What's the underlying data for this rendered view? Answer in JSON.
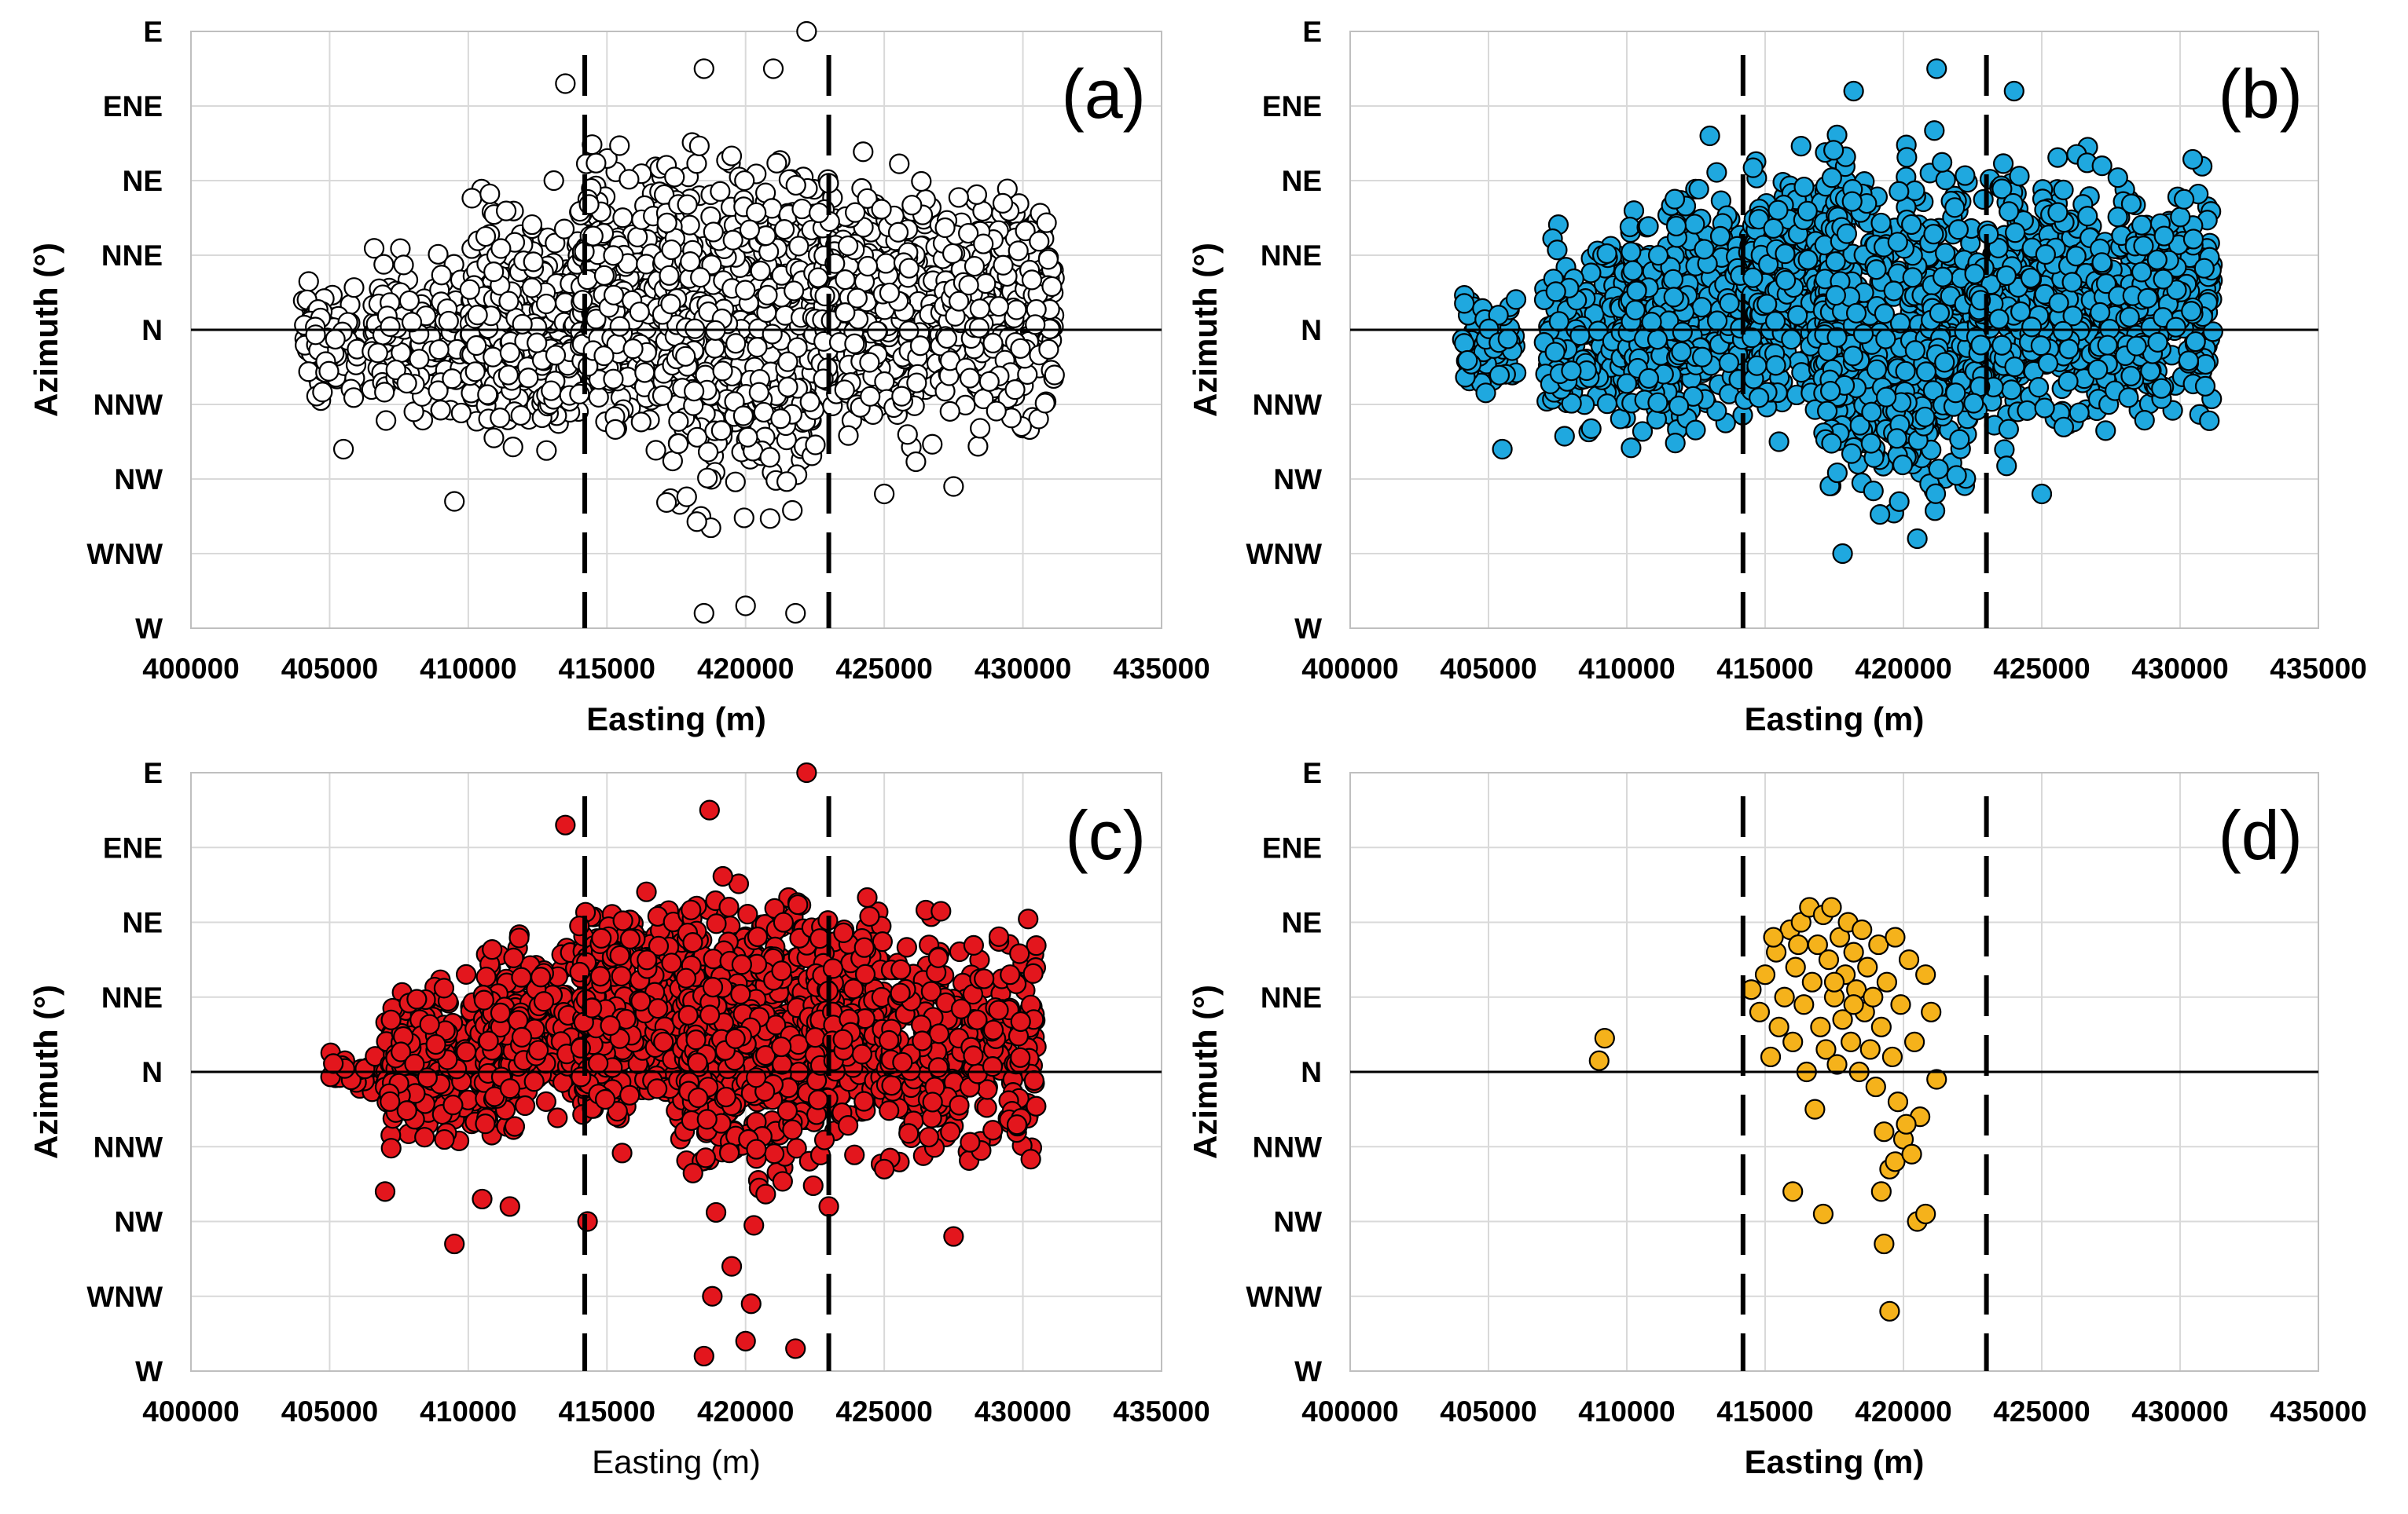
{
  "chart_data": [
    {
      "type": "scatter",
      "panel_label": "(a)",
      "xlabel": "Easting (m)",
      "ylabel": "Azimuth (°)",
      "xlim": [
        400000,
        435000
      ],
      "x_ticks": [
        "400000",
        "405000",
        "410000",
        "415000",
        "420000",
        "425000",
        "430000",
        "435000"
      ],
      "y_categories": [
        "W",
        "WNW",
        "NW",
        "NNW",
        "N",
        "NNE",
        "NE",
        "ENE",
        "E"
      ],
      "reference_lines_x": [
        414200,
        423000
      ],
      "marker_fill": "#ffffff",
      "marker_edge": "#000000",
      "clusters": [
        {
          "x": [
            404000,
            406000
          ],
          "y": [
            -1.2,
            0.8
          ],
          "n": 90
        },
        {
          "x": [
            406500,
            412000
          ],
          "y": [
            -1.6,
            1.4
          ],
          "n": 260
        },
        {
          "x": [
            410000,
            414000
          ],
          "y": [
            -2.0,
            2.2
          ],
          "n": 330
        },
        {
          "x": [
            414000,
            417500
          ],
          "y": [
            -1.8,
            2.8
          ],
          "n": 380
        },
        {
          "x": [
            417000,
            422500
          ],
          "y": [
            -3.2,
            3.2
          ],
          "n": 520
        },
        {
          "x": [
            422500,
            427000
          ],
          "y": [
            -2.0,
            2.6
          ],
          "n": 380
        },
        {
          "x": [
            427000,
            431200
          ],
          "y": [
            -1.8,
            2.4
          ],
          "n": 300
        }
      ],
      "extra_points": [
        {
          "x": 422200,
          "y": 4.0
        },
        {
          "x": 418500,
          "y": -3.8
        },
        {
          "x": 420000,
          "y": -3.7
        },
        {
          "x": 421800,
          "y": -3.8
        },
        {
          "x": 409500,
          "y": -2.3
        },
        {
          "x": 405500,
          "y": -1.6
        },
        {
          "x": 421000,
          "y": 3.5
        },
        {
          "x": 413500,
          "y": 3.3
        },
        {
          "x": 418500,
          "y": 3.5
        },
        {
          "x": 425000,
          "y": -2.2
        },
        {
          "x": 427500,
          "y": -2.1
        }
      ]
    },
    {
      "type": "scatter",
      "panel_label": "(b)",
      "xlabel": "Easting (m)",
      "ylabel": "Azimuth (°)",
      "xlim": [
        400000,
        435000
      ],
      "x_ticks": [
        "400000",
        "405000",
        "410000",
        "415000",
        "420000",
        "425000",
        "430000",
        "435000"
      ],
      "y_categories": [
        "W",
        "WNW",
        "NW",
        "NNW",
        "N",
        "NNE",
        "NE",
        "ENE",
        "E"
      ],
      "reference_lines_x": [
        414200,
        423000
      ],
      "marker_fill": "#1fa8df",
      "marker_edge": "#000000",
      "clusters": [
        {
          "x": [
            404000,
            406000
          ],
          "y": [
            -1.2,
            0.8
          ],
          "n": 80
        },
        {
          "x": [
            407000,
            412000
          ],
          "y": [
            -1.8,
            1.6
          ],
          "n": 260
        },
        {
          "x": [
            410000,
            414500
          ],
          "y": [
            -2.0,
            2.4
          ],
          "n": 340
        },
        {
          "x": [
            414500,
            418000
          ],
          "y": [
            -1.6,
            2.8
          ],
          "n": 380
        },
        {
          "x": [
            417000,
            422500
          ],
          "y": [
            -3.0,
            3.2
          ],
          "n": 560
        },
        {
          "x": [
            422500,
            427000
          ],
          "y": [
            -2.0,
            2.8
          ],
          "n": 420
        },
        {
          "x": [
            427000,
            431200
          ],
          "y": [
            -1.8,
            2.6
          ],
          "n": 330
        }
      ],
      "extra_points": [
        {
          "x": 421200,
          "y": 3.5
        },
        {
          "x": 418200,
          "y": 3.2
        },
        {
          "x": 417800,
          "y": -3.0
        },
        {
          "x": 420500,
          "y": -2.8
        },
        {
          "x": 405500,
          "y": -1.6
        },
        {
          "x": 415500,
          "y": -1.5
        },
        {
          "x": 425000,
          "y": -2.2
        },
        {
          "x": 424000,
          "y": 3.2
        },
        {
          "x": 413000,
          "y": 2.6
        }
      ]
    },
    {
      "type": "scatter",
      "panel_label": "(c)",
      "xlabel": "Easting (m)",
      "ylabel": "Azimuth (°)",
      "xlim": [
        400000,
        435000
      ],
      "x_ticks": [
        "400000",
        "405000",
        "410000",
        "415000",
        "420000",
        "425000",
        "430000",
        "435000"
      ],
      "y_categories": [
        "W",
        "WNW",
        "NW",
        "NNW",
        "N",
        "NNE",
        "NE",
        "ENE",
        "E"
      ],
      "reference_lines_x": [
        414200,
        423000
      ],
      "marker_fill": "#e3161d",
      "marker_edge": "#000000",
      "clusters": [
        {
          "x": [
            405000,
            407500
          ],
          "y": [
            -0.4,
            0.4
          ],
          "n": 40
        },
        {
          "x": [
            407000,
            411000
          ],
          "y": [
            -1.4,
            1.6
          ],
          "n": 260
        },
        {
          "x": [
            410500,
            414000
          ],
          "y": [
            -1.0,
            2.0
          ],
          "n": 320
        },
        {
          "x": [
            414000,
            417800
          ],
          "y": [
            -1.2,
            2.8
          ],
          "n": 380
        },
        {
          "x": [
            417800,
            422500
          ],
          "y": [
            -2.2,
            3.2
          ],
          "n": 520
        },
        {
          "x": [
            422500,
            425000
          ],
          "y": [
            -1.4,
            2.6
          ],
          "n": 240
        },
        {
          "x": [
            425000,
            430500
          ],
          "y": [
            -1.6,
            2.4
          ],
          "n": 330
        }
      ],
      "extra_points": [
        {
          "x": 422200,
          "y": 4.0
        },
        {
          "x": 418500,
          "y": -3.8
        },
        {
          "x": 420000,
          "y": -3.6
        },
        {
          "x": 421800,
          "y": -3.7
        },
        {
          "x": 409500,
          "y": -2.3
        },
        {
          "x": 410500,
          "y": -1.7
        },
        {
          "x": 411500,
          "y": -1.8
        },
        {
          "x": 418700,
          "y": 3.5
        },
        {
          "x": 413500,
          "y": 3.3
        },
        {
          "x": 419500,
          "y": -2.6
        },
        {
          "x": 420200,
          "y": -3.1
        },
        {
          "x": 418800,
          "y": -3.0
        },
        {
          "x": 407000,
          "y": -1.6
        },
        {
          "x": 423000,
          "y": -1.8
        },
        {
          "x": 425000,
          "y": -1.3
        },
        {
          "x": 427500,
          "y": -2.2
        },
        {
          "x": 414300,
          "y": -2.0
        }
      ]
    },
    {
      "type": "scatter",
      "panel_label": "(d)",
      "xlabel": "Easting (m)",
      "ylabel": "Azimuth (°)",
      "xlim": [
        400000,
        435000
      ],
      "x_ticks": [
        "400000",
        "405000",
        "410000",
        "415000",
        "420000",
        "425000",
        "430000",
        "435000"
      ],
      "y_categories": [
        "W",
        "WNW",
        "NW",
        "NNW",
        "N",
        "NNE",
        "NE",
        "ENE",
        "E"
      ],
      "reference_lines_x": [
        414200,
        423000
      ],
      "marker_fill": "#f5b21b",
      "marker_edge": "#000000",
      "points": [
        {
          "x": 409000,
          "y": 0.15
        },
        {
          "x": 409200,
          "y": 0.45
        },
        {
          "x": 414500,
          "y": 1.1
        },
        {
          "x": 414800,
          "y": 0.8
        },
        {
          "x": 415000,
          "y": 1.3
        },
        {
          "x": 415200,
          "y": 0.2
        },
        {
          "x": 415400,
          "y": 1.6
        },
        {
          "x": 415500,
          "y": 0.6
        },
        {
          "x": 415700,
          "y": 1.0
        },
        {
          "x": 415900,
          "y": 1.9
        },
        {
          "x": 416000,
          "y": 0.4
        },
        {
          "x": 416100,
          "y": 1.4
        },
        {
          "x": 416300,
          "y": 2.0
        },
        {
          "x": 416400,
          "y": 0.9
        },
        {
          "x": 416500,
          "y": 0.0
        },
        {
          "x": 416600,
          "y": 2.2
        },
        {
          "x": 416700,
          "y": 1.2
        },
        {
          "x": 416800,
          "y": -0.5
        },
        {
          "x": 416900,
          "y": 1.7
        },
        {
          "x": 417000,
          "y": 0.6
        },
        {
          "x": 417100,
          "y": 2.1
        },
        {
          "x": 417200,
          "y": 0.3
        },
        {
          "x": 417300,
          "y": 1.5
        },
        {
          "x": 417400,
          "y": 2.2
        },
        {
          "x": 417500,
          "y": 1.0
        },
        {
          "x": 417600,
          "y": 0.1
        },
        {
          "x": 417700,
          "y": 1.8
        },
        {
          "x": 417800,
          "y": 0.7
        },
        {
          "x": 417900,
          "y": 1.3
        },
        {
          "x": 418000,
          "y": 2.0
        },
        {
          "x": 418100,
          "y": 0.4
        },
        {
          "x": 418200,
          "y": 1.6
        },
        {
          "x": 418300,
          "y": 1.1
        },
        {
          "x": 418400,
          "y": 0.0
        },
        {
          "x": 418500,
          "y": 1.9
        },
        {
          "x": 418600,
          "y": 0.8
        },
        {
          "x": 418700,
          "y": 1.4
        },
        {
          "x": 418800,
          "y": 0.3
        },
        {
          "x": 418900,
          "y": 1.0
        },
        {
          "x": 419000,
          "y": -0.2
        },
        {
          "x": 419100,
          "y": 1.7
        },
        {
          "x": 419200,
          "y": 0.6
        },
        {
          "x": 419300,
          "y": -0.8
        },
        {
          "x": 419400,
          "y": 1.2
        },
        {
          "x": 419500,
          "y": -1.3
        },
        {
          "x": 419600,
          "y": 0.2
        },
        {
          "x": 419700,
          "y": 1.8
        },
        {
          "x": 419800,
          "y": -0.4
        },
        {
          "x": 419900,
          "y": 0.9
        },
        {
          "x": 420000,
          "y": -0.9
        },
        {
          "x": 420200,
          "y": 1.5
        },
        {
          "x": 420400,
          "y": 0.4
        },
        {
          "x": 420600,
          "y": -0.6
        },
        {
          "x": 420800,
          "y": 1.3
        },
        {
          "x": 421000,
          "y": 0.8
        },
        {
          "x": 421200,
          "y": -0.1
        },
        {
          "x": 416000,
          "y": -1.6
        },
        {
          "x": 417100,
          "y": -1.9
        },
        {
          "x": 419300,
          "y": -2.3
        },
        {
          "x": 419500,
          "y": -3.2
        },
        {
          "x": 420500,
          "y": -2.0
        },
        {
          "x": 420800,
          "y": -1.9
        },
        {
          "x": 419200,
          "y": -1.6
        },
        {
          "x": 419700,
          "y": -1.2
        },
        {
          "x": 420300,
          "y": -1.1
        },
        {
          "x": 420100,
          "y": -0.7
        },
        {
          "x": 415300,
          "y": 1.8
        },
        {
          "x": 416200,
          "y": 1.7
        },
        {
          "x": 417500,
          "y": 1.2
        },
        {
          "x": 418200,
          "y": 0.9
        }
      ]
    }
  ]
}
